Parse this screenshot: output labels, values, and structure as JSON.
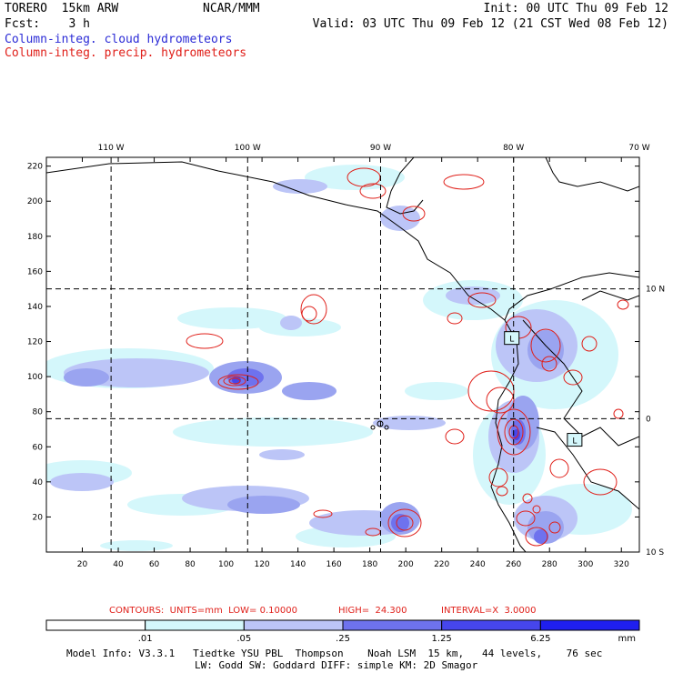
{
  "header": {
    "model": "TORERO  15km ARW",
    "org": "NCAR/MMM",
    "init": "Init: 00 UTC Thu 09 Feb 12",
    "fcst": "Fcst:    3 h",
    "valid": "Valid: 03 UTC Thu 09 Feb 12 (21 CST Wed 08 Feb 12)",
    "line_cloud": "Column-integ. cloud hydrometeors",
    "line_precip": "Column-integ. precip. hydrometeors"
  },
  "contours_info": {
    "label": "CONTOURS:  UNITS=mm  LOW= 0.10000",
    "high": "HIGH=  24.300",
    "interval": "INTERVAL=X  3.0000"
  },
  "footer": {
    "line1": "Model Info: V3.3.1   Tiedtke YSU PBL  Thompson    Noah LSM  15 km,   44 levels,    76 sec",
    "line2": "LW: Godd SW: Goddard DIFF: simple KM: 2D Smagor"
  },
  "colors": {
    "cloud_light": "#d4f7fb",
    "cloud_1": "#bcc5f7",
    "cloud_2": "#9aa4f0",
    "cloud_3": "#6e72ee",
    "cloud_4": "#4646ec",
    "cloud_5": "#1f1ff0",
    "contour": "#e0201a"
  },
  "chart_data": {
    "type": "heatmap",
    "title": "Column-integ. cloud hydrometeors / Column-integ. precip. hydrometeors",
    "x_range": [
      0,
      330
    ],
    "y_range": [
      0,
      225
    ],
    "x_ticks": [
      20,
      40,
      60,
      80,
      100,
      120,
      140,
      160,
      180,
      200,
      220,
      240,
      260,
      280,
      300,
      320
    ],
    "y_ticks": [
      20,
      40,
      60,
      80,
      100,
      120,
      140,
      160,
      180,
      200,
      220
    ],
    "lon_labels": [
      {
        "x": 36,
        "text": "110 W"
      },
      {
        "x": 112,
        "text": "100 W"
      },
      {
        "x": 186,
        "text": "90 W"
      },
      {
        "x": 260,
        "text": "80 W"
      },
      {
        "x": 330,
        "text": "70 W"
      }
    ],
    "lat_labels": [
      {
        "y": 150,
        "text": "10 N"
      },
      {
        "y": 76,
        "text": "0"
      },
      {
        "y": 0,
        "text": "10 S"
      }
    ],
    "gridlines": {
      "x": [
        36,
        112,
        186,
        260
      ],
      "y": [
        76,
        150
      ]
    },
    "colorbar": {
      "units": "mm",
      "levels": [
        ".01",
        ".05",
        ".25",
        "1.25",
        "6.25"
      ]
    },
    "low_marks": [
      {
        "x": 259,
        "y": 122,
        "label": "L"
      },
      {
        "x": 294,
        "y": 64,
        "label": "L"
      }
    ]
  }
}
